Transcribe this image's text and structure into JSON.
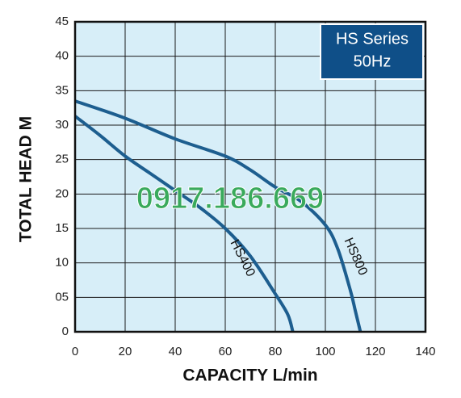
{
  "chart_data": {
    "type": "line",
    "xlabel": "CAPACITY L/min",
    "ylabel": "TOTAL HEAD M",
    "badge": [
      "HS Series",
      "50Hz"
    ],
    "watermark": "0917.186.669",
    "xlim": [
      0,
      140
    ],
    "xticks": [
      0,
      20,
      40,
      60,
      80,
      100,
      120,
      140
    ],
    "ylim": [
      0,
      45
    ],
    "yticks": [
      0,
      {
        "value": 5,
        "label": "05"
      },
      10,
      15,
      20,
      25,
      30,
      35,
      40,
      45
    ],
    "grid": true,
    "series": [
      {
        "name": "HS400",
        "color": "#1d5e8f",
        "x": [
          0,
          10,
          20,
          30,
          40,
          50,
          60,
          70,
          80,
          85,
          87
        ],
        "values": [
          31.3,
          28.5,
          25.5,
          23,
          20.5,
          18,
          15,
          11,
          5.5,
          2.5,
          0
        ]
      },
      {
        "name": "HS800",
        "color": "#1d5e8f",
        "x": [
          0,
          20,
          40,
          60,
          70,
          80,
          90,
          100,
          105,
          110,
          112,
          114
        ],
        "values": [
          33.5,
          31,
          28,
          25.5,
          23.5,
          21,
          19,
          15.5,
          12,
          6,
          3,
          0
        ]
      }
    ]
  }
}
